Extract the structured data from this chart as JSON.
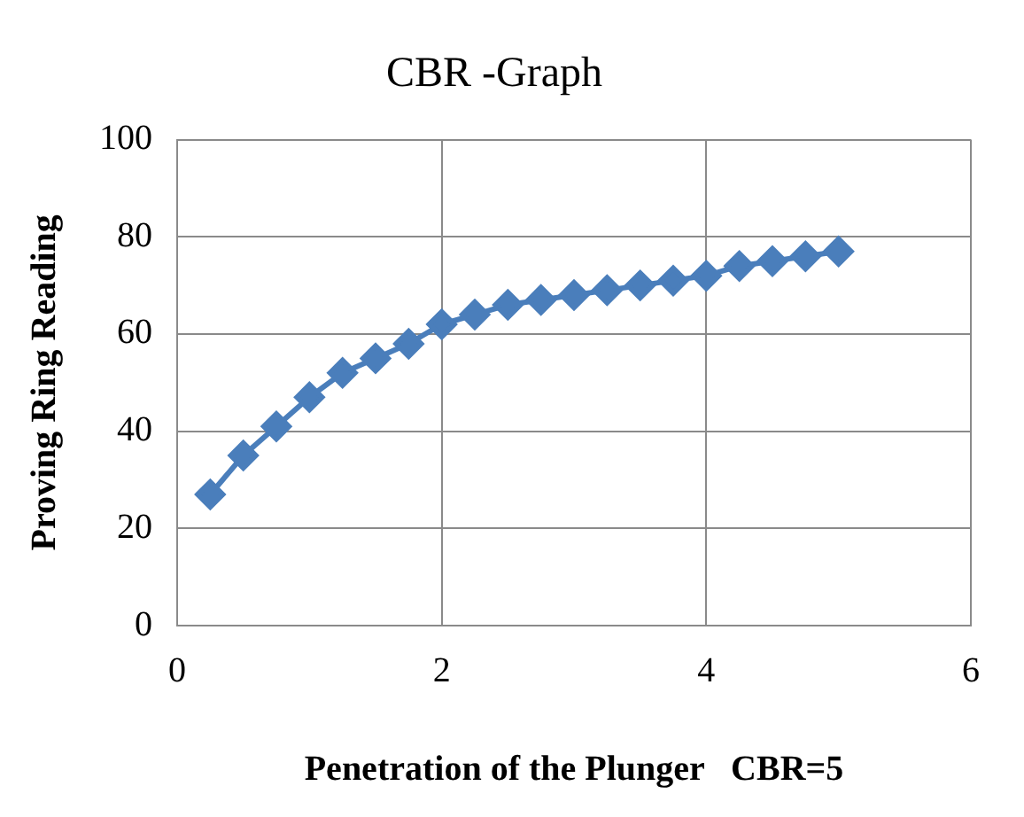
{
  "chart_data": {
    "type": "line",
    "title": "CBR -Graph",
    "xlabel": "Penetration of the Plunger   CBR=5",
    "ylabel": "Proving Ring Reading",
    "x": [
      0.25,
      0.5,
      0.75,
      1,
      1.25,
      1.5,
      1.75,
      2,
      2.25,
      2.5,
      2.75,
      3,
      3.25,
      3.5,
      3.75,
      4,
      4.25,
      4.5,
      4.75,
      5
    ],
    "series": [
      {
        "color": "#4a7ebb",
        "values": [
          27,
          35,
          41,
          47,
          52,
          55,
          58,
          62,
          64,
          66,
          67,
          68,
          69,
          70,
          71,
          72,
          74,
          75,
          76,
          77
        ]
      }
    ],
    "xlim": [
      0,
      6
    ],
    "xticks": [
      0,
      2,
      4,
      6
    ],
    "ylim": [
      0,
      100
    ],
    "yticks": [
      0,
      20,
      40,
      60,
      80,
      100
    ],
    "grid": true,
    "legend": false,
    "marker": "diamond",
    "line_style": "solid"
  }
}
